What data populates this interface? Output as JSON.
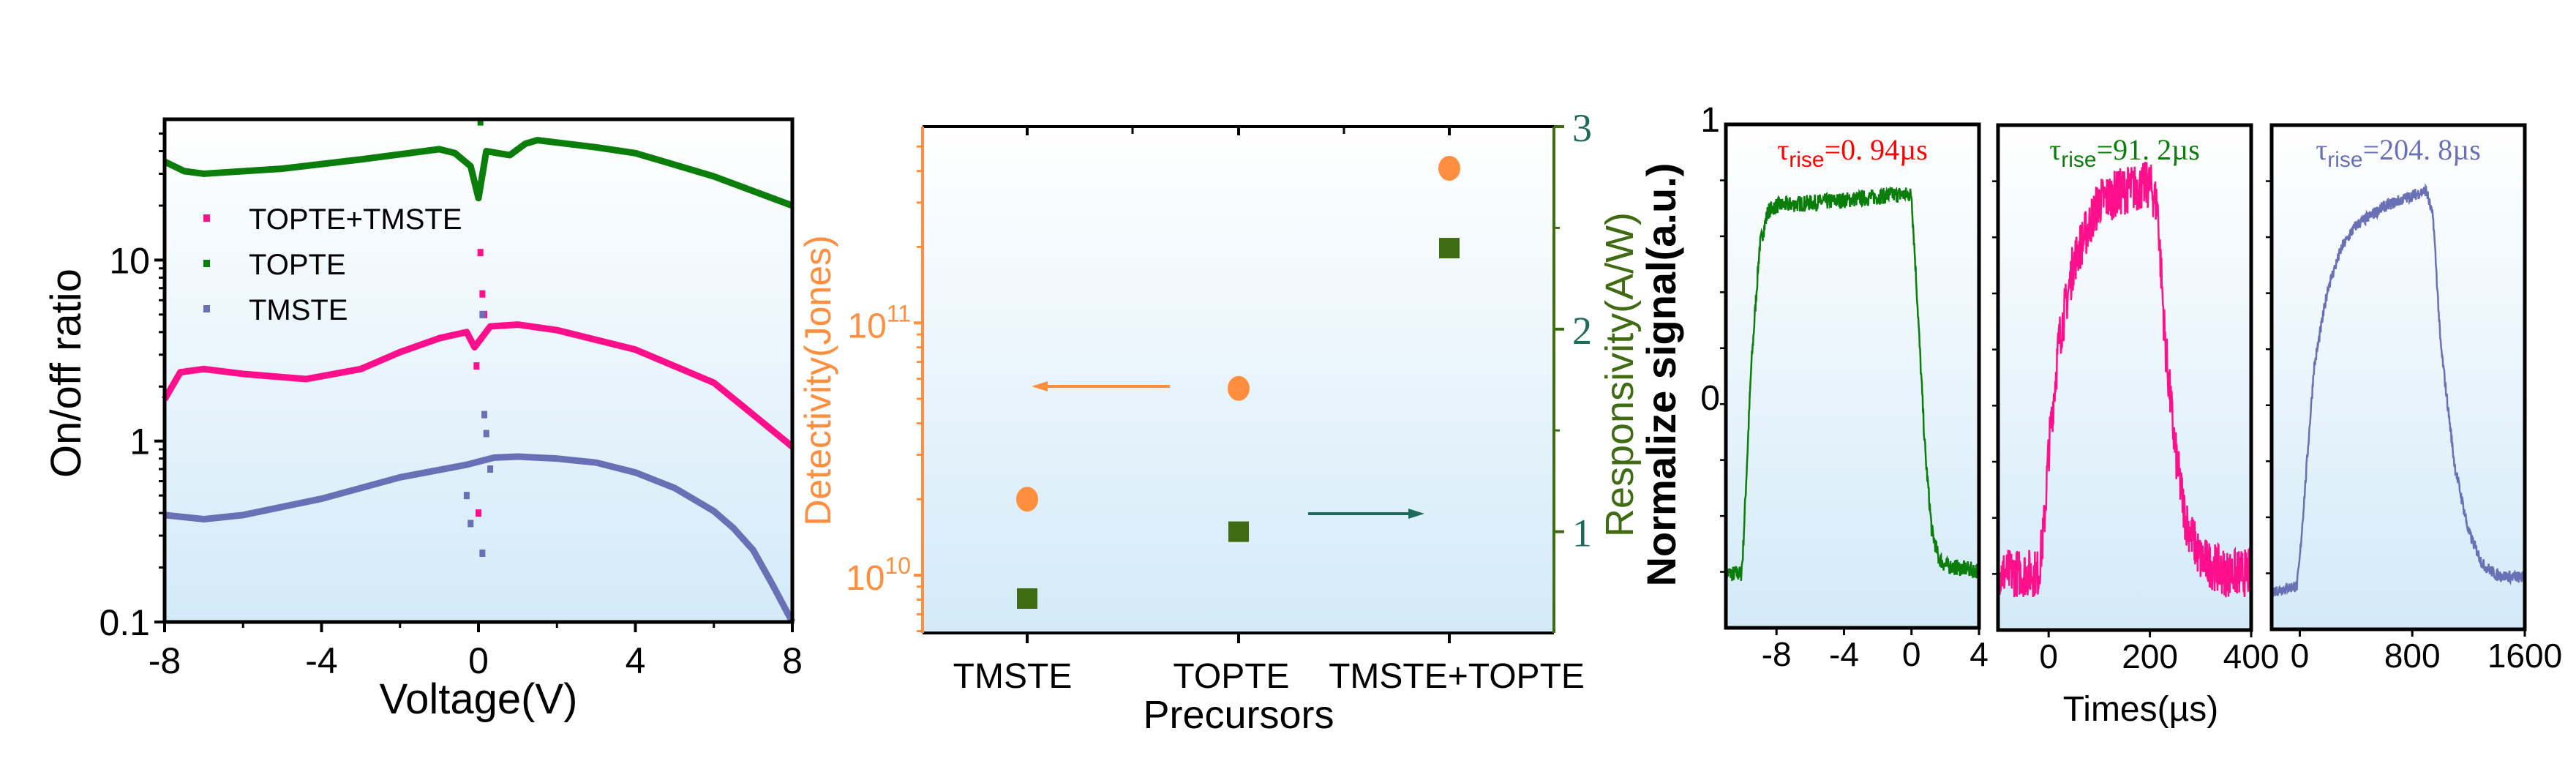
{
  "colors": {
    "pink": "#ff0f8c",
    "green": "#0a7d0a",
    "blue": "#6a70b6",
    "orange": "#ff8f3f",
    "dkgreen": "#3f6b12",
    "teal": "#1f6b5a",
    "red": "#ff0000",
    "bg_top": "#ffffff",
    "bg_bottom": "#d3eaf8"
  },
  "chart_data": [
    {
      "type": "scatter",
      "xlabel": "Voltage(V)",
      "ylabel": "On/off ratio",
      "xlim": [
        -8,
        8
      ],
      "ylim": [
        0.1,
        60
      ],
      "yscale": "log",
      "xticks": [
        "-8",
        "-4",
        "0",
        "4",
        "8"
      ],
      "xtick_values": [
        -8,
        -4,
        0,
        4,
        8
      ],
      "yticks": [
        "0.1",
        "1",
        "10"
      ],
      "ytick_values": [
        0.1,
        1,
        10
      ],
      "legend_placement": "top-left",
      "series": [
        {
          "name": "TOPTE+TMSTE",
          "color": "pink",
          "x": [
            -8,
            -7.6,
            -7,
            -6,
            -4.4,
            -3,
            -2,
            -1,
            -0.3,
            -0.1,
            0.3,
            1,
            2,
            4,
            6,
            7,
            8
          ],
          "y": [
            1.7,
            2.4,
            2.5,
            2.35,
            2.2,
            2.5,
            3.1,
            3.7,
            4.0,
            3.3,
            4.3,
            4.4,
            4.1,
            3.2,
            2.1,
            1.4,
            0.93
          ],
          "stray": {
            "x": [
              0.05,
              0.1,
              0.15,
              -0.05,
              0
            ],
            "y": [
              11,
              6.5,
              5,
              2.6,
              0.4
            ]
          }
        },
        {
          "name": "TOPTE",
          "color": "green",
          "x": [
            -8,
            -7.5,
            -7,
            -5,
            -3,
            -1,
            -0.6,
            -0.2,
            0,
            0.2,
            0.5,
            0.8,
            1.2,
            1.5,
            3,
            4,
            6,
            8
          ],
          "y": [
            35,
            31,
            30,
            32,
            36,
            41,
            39,
            33,
            22,
            40,
            39,
            38,
            44,
            46,
            42,
            39,
            29,
            20
          ],
          "stray": {
            "x": [
              0.05
            ],
            "y": [
              58
            ]
          }
        },
        {
          "name": "TMSTE",
          "color": "blue",
          "x": [
            -8,
            -7,
            -6,
            -4,
            -2,
            -0.3,
            0.4,
            1,
            2,
            3,
            4,
            5,
            6,
            6.5,
            7,
            7.5,
            8
          ],
          "y": [
            0.39,
            0.37,
            0.39,
            0.48,
            0.63,
            0.74,
            0.81,
            0.82,
            0.8,
            0.76,
            0.67,
            0.55,
            0.41,
            0.33,
            0.25,
            0.16,
            0.1
          ],
          "stray": {
            "x": [
              0.1,
              0.15,
              0.2,
              -0.3,
              -0.2,
              0.1,
              0.3
            ],
            "y": [
              5,
              1.4,
              1.1,
              0.5,
              0.35,
              0.24,
              0.7
            ]
          }
        }
      ]
    },
    {
      "type": "scatter",
      "xlabel": "Precursors",
      "ylabel_left": "Detectivity(Jones)",
      "ylabel_right": "Responsivity(A/W)",
      "categories": [
        "TMSTE",
        "TOPTE",
        "TMSTE+TOPTE"
      ],
      "ylim_left": [
        5900000000.0,
        600000000000.0
      ],
      "yscale_left": "log",
      "yticks_left": [
        {
          "base": "10",
          "exp": "10",
          "value": 10000000000.0
        },
        {
          "base": "10",
          "exp": "11",
          "value": 100000000000.0
        }
      ],
      "ylim_right": [
        0.5,
        3
      ],
      "yticks_right": [
        "1",
        "2",
        "3"
      ],
      "ytick_values_right": [
        1,
        2,
        3
      ],
      "series": [
        {
          "axis": "left",
          "marker": "circle",
          "color": "orange",
          "values": [
            20000000000.0,
            55000000000.0,
            410000000000.0
          ]
        },
        {
          "axis": "right",
          "marker": "square",
          "color": "dkgreen",
          "values": [
            0.67,
            1.0,
            2.4
          ]
        }
      ],
      "annotations": [
        {
          "type": "arrow",
          "direction": "left",
          "color": "orange"
        },
        {
          "type": "arrow",
          "direction": "right",
          "color": "teal"
        }
      ]
    },
    {
      "type": "line",
      "ylabel": "Normalize signal(a.u.)",
      "xlabel": "Times(µs)",
      "panels": [
        {
          "color": "green",
          "annotation": {
            "sym": "τ",
            "sub": "rise",
            "value": "=0. 94µs",
            "color": "red"
          },
          "xlim": [
            -11,
            4
          ],
          "ylim": [
            -0.86,
            1
          ],
          "xticks": [
            "-8",
            "-4",
            "0",
            "4"
          ],
          "xtick_values": [
            -8,
            -4,
            0,
            4
          ],
          "yticks": [
            "1",
            "0"
          ],
          "ytick_values": [
            1,
            0
          ],
          "x": [
            -11,
            -10.1,
            -10,
            -9.5,
            -9,
            -8.5,
            -8,
            -4,
            -1,
            0,
            0.3,
            0.8,
            1.2,
            1.6,
            2,
            4
          ],
          "y": [
            -0.66,
            -0.66,
            -0.6,
            0.1,
            0.55,
            0.68,
            0.7,
            0.72,
            0.74,
            0.74,
            0.4,
            -0.2,
            -0.5,
            -0.6,
            -0.63,
            -0.65
          ]
        },
        {
          "color": "pink",
          "annotation": {
            "sym": "τ",
            "sub": "rise",
            "value": "=91. 2µs",
            "color": "green"
          },
          "xlim": [
            -100,
            400
          ],
          "ylim": [
            -0.86,
            1
          ],
          "xticks": [
            "0",
            "200",
            "400"
          ],
          "xtick_values": [
            0,
            200,
            400
          ],
          "x": [
            -100,
            -20,
            -10,
            0,
            20,
            50,
            100,
            150,
            200,
            215,
            230,
            250,
            270,
            300,
            350,
            400
          ],
          "y": [
            -0.65,
            -0.65,
            -0.5,
            -0.2,
            0.2,
            0.5,
            0.72,
            0.76,
            0.78,
            0.7,
            0.2,
            -0.2,
            -0.45,
            -0.6,
            -0.65,
            -0.65
          ]
        },
        {
          "color": "blue",
          "annotation": {
            "sym": "τ",
            "sub": "rise",
            "value": "=204. 8µs",
            "color": "blue"
          },
          "xlim": [
            -200,
            1600
          ],
          "ylim": [
            -0.86,
            1
          ],
          "xticks": [
            "0",
            "800",
            "1600"
          ],
          "xtick_values": [
            0,
            800,
            1600
          ],
          "x": [
            -200,
            -20,
            0,
            100,
            200,
            300,
            400,
            600,
            800,
            900,
            950,
            1000,
            1100,
            1200,
            1300,
            1400,
            1600
          ],
          "y": [
            -0.72,
            -0.7,
            -0.6,
            0.1,
            0.4,
            0.55,
            0.63,
            0.7,
            0.74,
            0.76,
            0.65,
            0.2,
            -0.25,
            -0.5,
            -0.62,
            -0.66,
            -0.67
          ]
        }
      ]
    }
  ]
}
